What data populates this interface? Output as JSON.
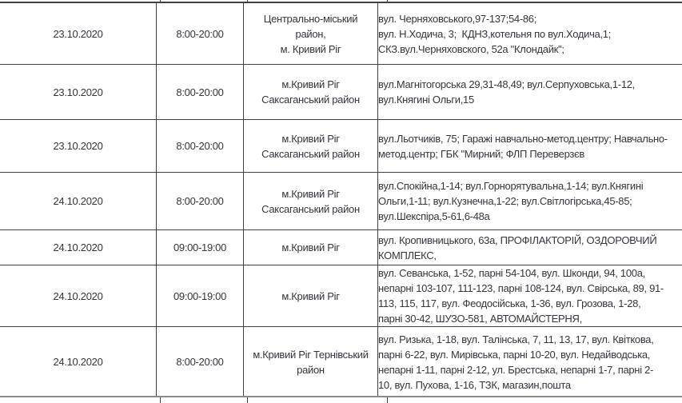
{
  "document": {
    "description_title": "",
    "colors": {
      "background": "#ffffff",
      "text": "#35353d",
      "grid_border": "#3f3f3f",
      "section_divider": "#898989"
    }
  },
  "table": {
    "rows": [
      {
        "date": "23.10.2020",
        "time": "8:00-20:00",
        "district": [
          "Центрально-міський",
          "район,",
          "м. Кривий Ріг"
        ],
        "addresses": [
          "вул. Черняховського,97-137;54-86;",
          "вул. Н.Ходича, 3;  КДНЗ,котельня по вул.Ходича,1;",
          "СКЗ.вул.Черняховского, 52а \"Клондайк\";"
        ]
      },
      {
        "date": "23.10.2020",
        "time": "8:00-20:00",
        "district": [
          "м.Кривий Ріг",
          "Саксаганський район"
        ],
        "addresses": [
          "вул.Магнітогорська 29,31-48,49; вул.Серпуховська,1-12,",
          "вул.Княгині Ольги,15"
        ]
      },
      {
        "date": "23.10.2020",
        "time": "8:00-20:00",
        "district": [
          "м.Кривий Ріг",
          "Саксаганський район"
        ],
        "addresses": [
          "вул.Льотчиків, 75; Гаражі навчально-метод.центру; Навчально-",
          "метод.центр; ГБК \"Мирний; ФЛП Переверзєв"
        ]
      },
      {
        "date": "24.10.2020",
        "time": "8:00-20:00",
        "district": [
          "м.Кривий Ріг",
          "Саксаганський район"
        ],
        "addresses": [
          "вул.Спокійна,1-14; вул.Горнорятувальна,1-14; вул.Княгині",
          "Ольги,1-11; вул.Кузнечна,1-22; вул.Світлогірська,45-85;",
          "вул.Шекспіра,5-61,6-48а"
        ]
      },
      {
        "date": "24.10.2020",
        "time": "09:00-19:00",
        "district": [
          "м.Кривий Ріг"
        ],
        "addresses": [
          "вул. Кропивницького, 63а, ПРОФІЛАКТОРІЙ, ОЗДОРОВЧИЙ",
          "КОМПЛЕКС,"
        ]
      },
      {
        "date": "24.10.2020",
        "time": "09:00-19:00",
        "district": [
          "м.Кривий Ріг"
        ],
        "addresses": [
          "вул. Севанська, 1-52, парні 54-104, вул. Шконди, 94, 100а,",
          "непарні 103-107, 111-123, парні 108-124, вул. Свірська, 89, 91-",
          "113, 115, 117, вул. Феодосійська, 1-36, вул. Грозова, 1-28,",
          "парні 30-42, ШУЗО-581, АВТОМАЙСТЕРНЯ,"
        ]
      },
      {
        "date": "24.10.2020",
        "time": "8:00-20:00",
        "district": [
          "м.Кривий Ріг Тернівський",
          "район"
        ],
        "addresses": [
          "вул. Ризька, 1-18, вул. Талінська, 7, 11, 13, 17, вул. Квіткова,",
          "парні 6-22, вул. Мирівська, парні 10-20, вул. Недайводська,",
          "непарні 1-11, парні 2-12, ул. Брестська, непарні 1-7, парні 2-",
          "10, вул. Пухова, 1-16, ТЗК, магазин,пошта"
        ]
      }
    ]
  }
}
